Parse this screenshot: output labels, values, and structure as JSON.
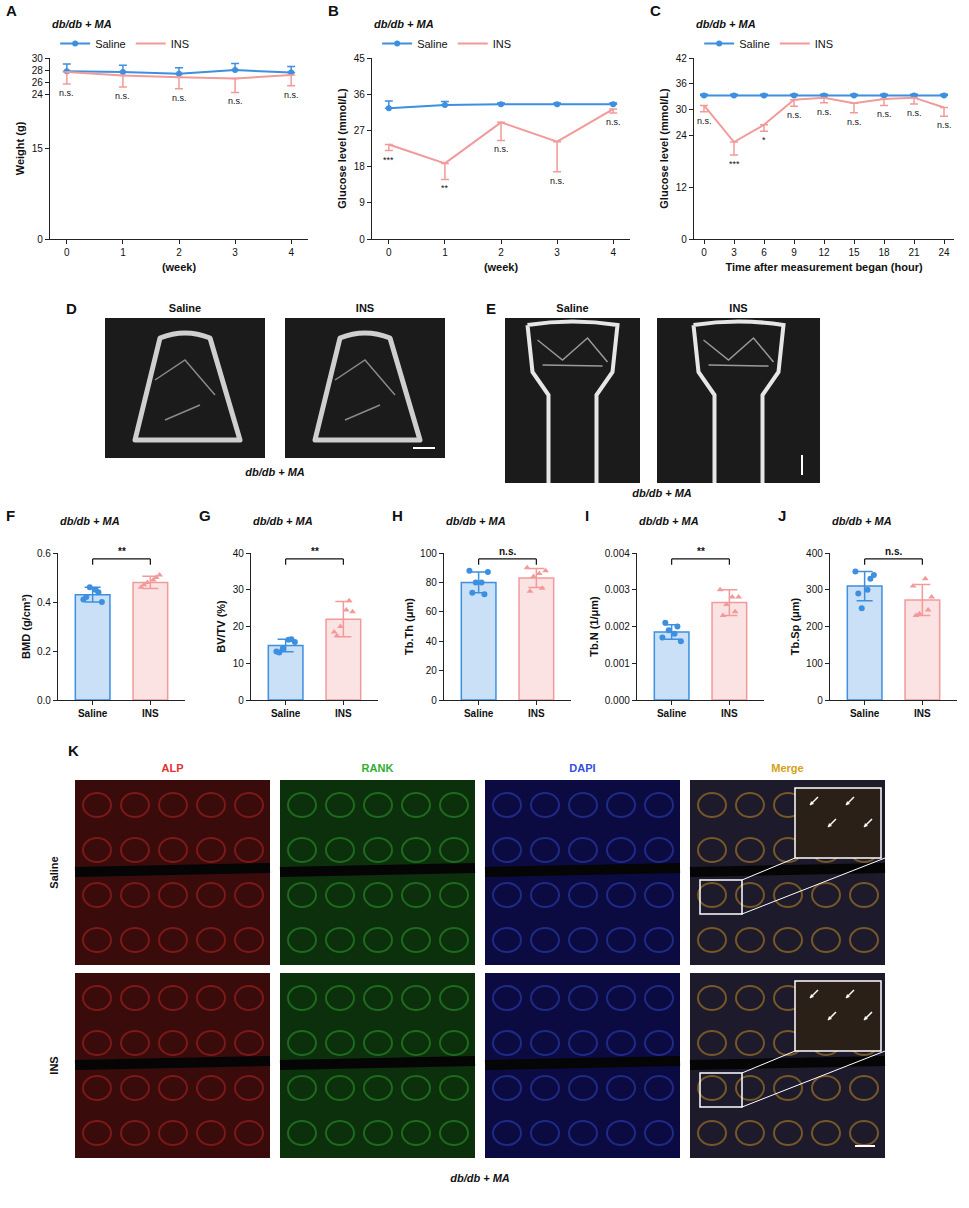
{
  "chart_data": [
    {
      "panel": "A",
      "type": "line",
      "title": "db/db + MA",
      "x_label": "(week)",
      "y_label": "Weight (g)",
      "x": [
        0,
        1,
        2,
        3,
        4
      ],
      "xlim": [
        -0.3,
        4.3
      ],
      "xticks": [
        0,
        1,
        2,
        3,
        4
      ],
      "ylim": [
        0,
        30
      ],
      "yticks": [
        0,
        15,
        24,
        26,
        28,
        30
      ],
      "legend": "top",
      "series": [
        {
          "name": "Saline",
          "color": "#3d8fe0",
          "marker": "circle",
          "values": [
            27.8,
            27.7,
            27.4,
            28.0,
            27.6
          ],
          "error_up": [
            1.2,
            1.1,
            1.0,
            1.1,
            1.0
          ]
        },
        {
          "name": "INS",
          "color": "#f29a9a",
          "marker": "none",
          "values": [
            27.7,
            27.1,
            26.8,
            26.6,
            27.2
          ],
          "error_down": [
            2.0,
            1.9,
            1.9,
            2.3,
            1.8
          ],
          "significance": [
            "n.s.",
            "n.s.",
            "n.s.",
            "n.s.",
            "n.s."
          ]
        }
      ]
    },
    {
      "panel": "B",
      "type": "line",
      "title": "db/db + MA",
      "x_label": "(week)",
      "y_label": "Glucose level (mmol/L)",
      "x": [
        0,
        1,
        2,
        3,
        4
      ],
      "xlim": [
        -0.3,
        4.3
      ],
      "xticks": [
        0,
        1,
        2,
        3,
        4
      ],
      "ylim": [
        0,
        45
      ],
      "yticks": [
        0,
        9,
        18,
        27,
        36,
        45
      ],
      "legend": "top",
      "series": [
        {
          "name": "Saline",
          "color": "#3d8fe0",
          "marker": "circle",
          "values": [
            32.5,
            33.3,
            33.5,
            33.5,
            33.5
          ],
          "error_up": [
            1.8,
            0.9,
            0.3,
            0.3,
            0.3
          ]
        },
        {
          "name": "INS",
          "color": "#f29a9a",
          "marker": "none",
          "values": [
            23.5,
            18.8,
            29.0,
            24.2,
            32.3
          ],
          "error_down": [
            1.5,
            4.0,
            4.5,
            7.5,
            1.0
          ],
          "significance": [
            "***",
            "**",
            "n.s.",
            "n.s.",
            "n.s."
          ]
        }
      ]
    },
    {
      "panel": "C",
      "type": "line",
      "title": "db/db + MA",
      "x_label": "Time after measurement began (hour)",
      "y_label": "Glucose level (mmol/L)",
      "x": [
        0,
        3,
        6,
        9,
        12,
        15,
        18,
        21,
        24
      ],
      "xlim": [
        -1,
        25
      ],
      "xticks": [
        0,
        3,
        6,
        9,
        12,
        15,
        18,
        21,
        24
      ],
      "ylim": [
        0,
        42
      ],
      "yticks": [
        0,
        12,
        24,
        30,
        36,
        42
      ],
      "legend": "top",
      "series": [
        {
          "name": "Saline",
          "color": "#3d8fe0",
          "marker": "circle",
          "values": [
            33.3,
            33.3,
            33.3,
            33.3,
            33.3,
            33.3,
            33.3,
            33.3,
            33.3
          ],
          "error_up": [
            0.3,
            0.3,
            0.3,
            0.3,
            0.3,
            0.3,
            0.3,
            0.3,
            0.3
          ]
        },
        {
          "name": "INS",
          "color": "#f29a9a",
          "marker": "none",
          "values": [
            31.0,
            22.5,
            26.5,
            32.3,
            32.8,
            31.5,
            32.5,
            32.8,
            30.5
          ],
          "error_down": [
            1.5,
            3.0,
            1.5,
            1.5,
            1.2,
            2.2,
            1.5,
            1.5,
            2.0
          ],
          "significance": [
            "n.s.",
            "***",
            "*",
            "n.s.",
            "n.s.",
            "n.s.",
            "n.s.",
            "n.s.",
            "n.s."
          ]
        }
      ]
    },
    {
      "panel": "F",
      "type": "bar",
      "title": "db/db + MA",
      "y_label": "BMD (g/cm³)",
      "categories": [
        "Saline",
        "INS"
      ],
      "values": [
        0.43,
        0.48
      ],
      "errors": [
        0.03,
        0.025
      ],
      "points": [
        [
          0.41,
          0.44,
          0.46,
          0.4,
          0.42,
          0.45
        ],
        [
          0.46,
          0.5,
          0.48,
          0.51,
          0.47,
          0.49
        ]
      ],
      "colors": [
        "#3d8fe0",
        "#f29a9a"
      ],
      "significance": "**",
      "ylim": [
        0,
        0.6
      ],
      "yticks": [
        {
          "value": 0,
          "label": "0.0"
        },
        {
          "value": 0.2,
          "label": "0.2"
        },
        {
          "value": 0.4,
          "label": "0.4"
        },
        {
          "value": 0.6,
          "label": "0.6"
        }
      ]
    },
    {
      "panel": "G",
      "type": "bar",
      "title": "db/db + MA",
      "y_label": "BV/TV (%)",
      "categories": [
        "Saline",
        "INS"
      ],
      "values": [
        14.8,
        22.0
      ],
      "errors": [
        1.7,
        4.8
      ],
      "points": [
        [
          13.2,
          16.5,
          14.0,
          15.8,
          12.9,
          16.4
        ],
        [
          18.5,
          27.0,
          20.0,
          24.0,
          17.5,
          24.5
        ]
      ],
      "colors": [
        "#3d8fe0",
        "#f29a9a"
      ],
      "significance": "**",
      "ylim": [
        0,
        40
      ],
      "yticks": [
        0,
        10,
        20,
        30,
        40
      ]
    },
    {
      "panel": "H",
      "type": "bar",
      "title": "db/db + MA",
      "y_label": "Tb.Th (μm)",
      "categories": [
        "Saline",
        "INS"
      ],
      "values": [
        80,
        83
      ],
      "errors": [
        7,
        6.5
      ],
      "points": [
        [
          88,
          72,
          80,
          87,
          73,
          80
        ],
        [
          90,
          76,
          84,
          88,
          74,
          86
        ]
      ],
      "colors": [
        "#3d8fe0",
        "#f29a9a"
      ],
      "significance": "n.s.",
      "ylim": [
        0,
        100
      ],
      "yticks": [
        0,
        20,
        40,
        60,
        80,
        100
      ]
    },
    {
      "panel": "I",
      "type": "bar",
      "title": "db/db + MA",
      "y_label": "Tb.N (1/μm)",
      "categories": [
        "Saline",
        "INS"
      ],
      "values": [
        0.00185,
        0.00265
      ],
      "errors": [
        0.0002,
        0.00035
      ],
      "points": [
        [
          0.0017,
          0.002,
          0.0019,
          0.0016,
          0.0021,
          0.0018
        ],
        [
          0.003,
          0.0024,
          0.0026,
          0.0028,
          0.0023,
          0.0028
        ]
      ],
      "colors": [
        "#3d8fe0",
        "#f29a9a"
      ],
      "significance": "**",
      "ylim": [
        0,
        0.004
      ],
      "yticks": [
        {
          "value": 0,
          "label": "0.000"
        },
        {
          "value": 0.001,
          "label": "0.001"
        },
        {
          "value": 0.002,
          "label": "0.002"
        },
        {
          "value": 0.003,
          "label": "0.003"
        },
        {
          "value": 0.004,
          "label": "0.004"
        }
      ]
    },
    {
      "panel": "J",
      "type": "bar",
      "title": "db/db + MA",
      "y_label": "Tb.Sp (μm)",
      "categories": [
        "Saline",
        "INS"
      ],
      "values": [
        310,
        272
      ],
      "errors": [
        40,
        42
      ],
      "points": [
        [
          350,
          330,
          250,
          340,
          290,
          300
        ],
        [
          310,
          245,
          235,
          280,
          230,
          330
        ]
      ],
      "colors": [
        "#3d8fe0",
        "#f29a9a"
      ],
      "significance": "n.s.",
      "ylim": [
        0,
        400
      ],
      "yticks": [
        0,
        100,
        200,
        300,
        400
      ]
    }
  ],
  "images": [
    {
      "panel": "D",
      "title": "db/db + MA",
      "labels": [
        "Saline",
        "INS"
      ]
    },
    {
      "panel": "E",
      "title": "db/db + MA",
      "labels": [
        "Saline",
        "INS"
      ]
    },
    {
      "panel": "K",
      "title": "db/db + MA",
      "channels": [
        "ALP",
        "RANK",
        "DAPI",
        "Merge"
      ],
      "channel_colors": [
        "#e03030",
        "#2fae2f",
        "#3050e0",
        "#d4a017"
      ],
      "rows": [
        "Saline",
        "INS"
      ]
    }
  ]
}
